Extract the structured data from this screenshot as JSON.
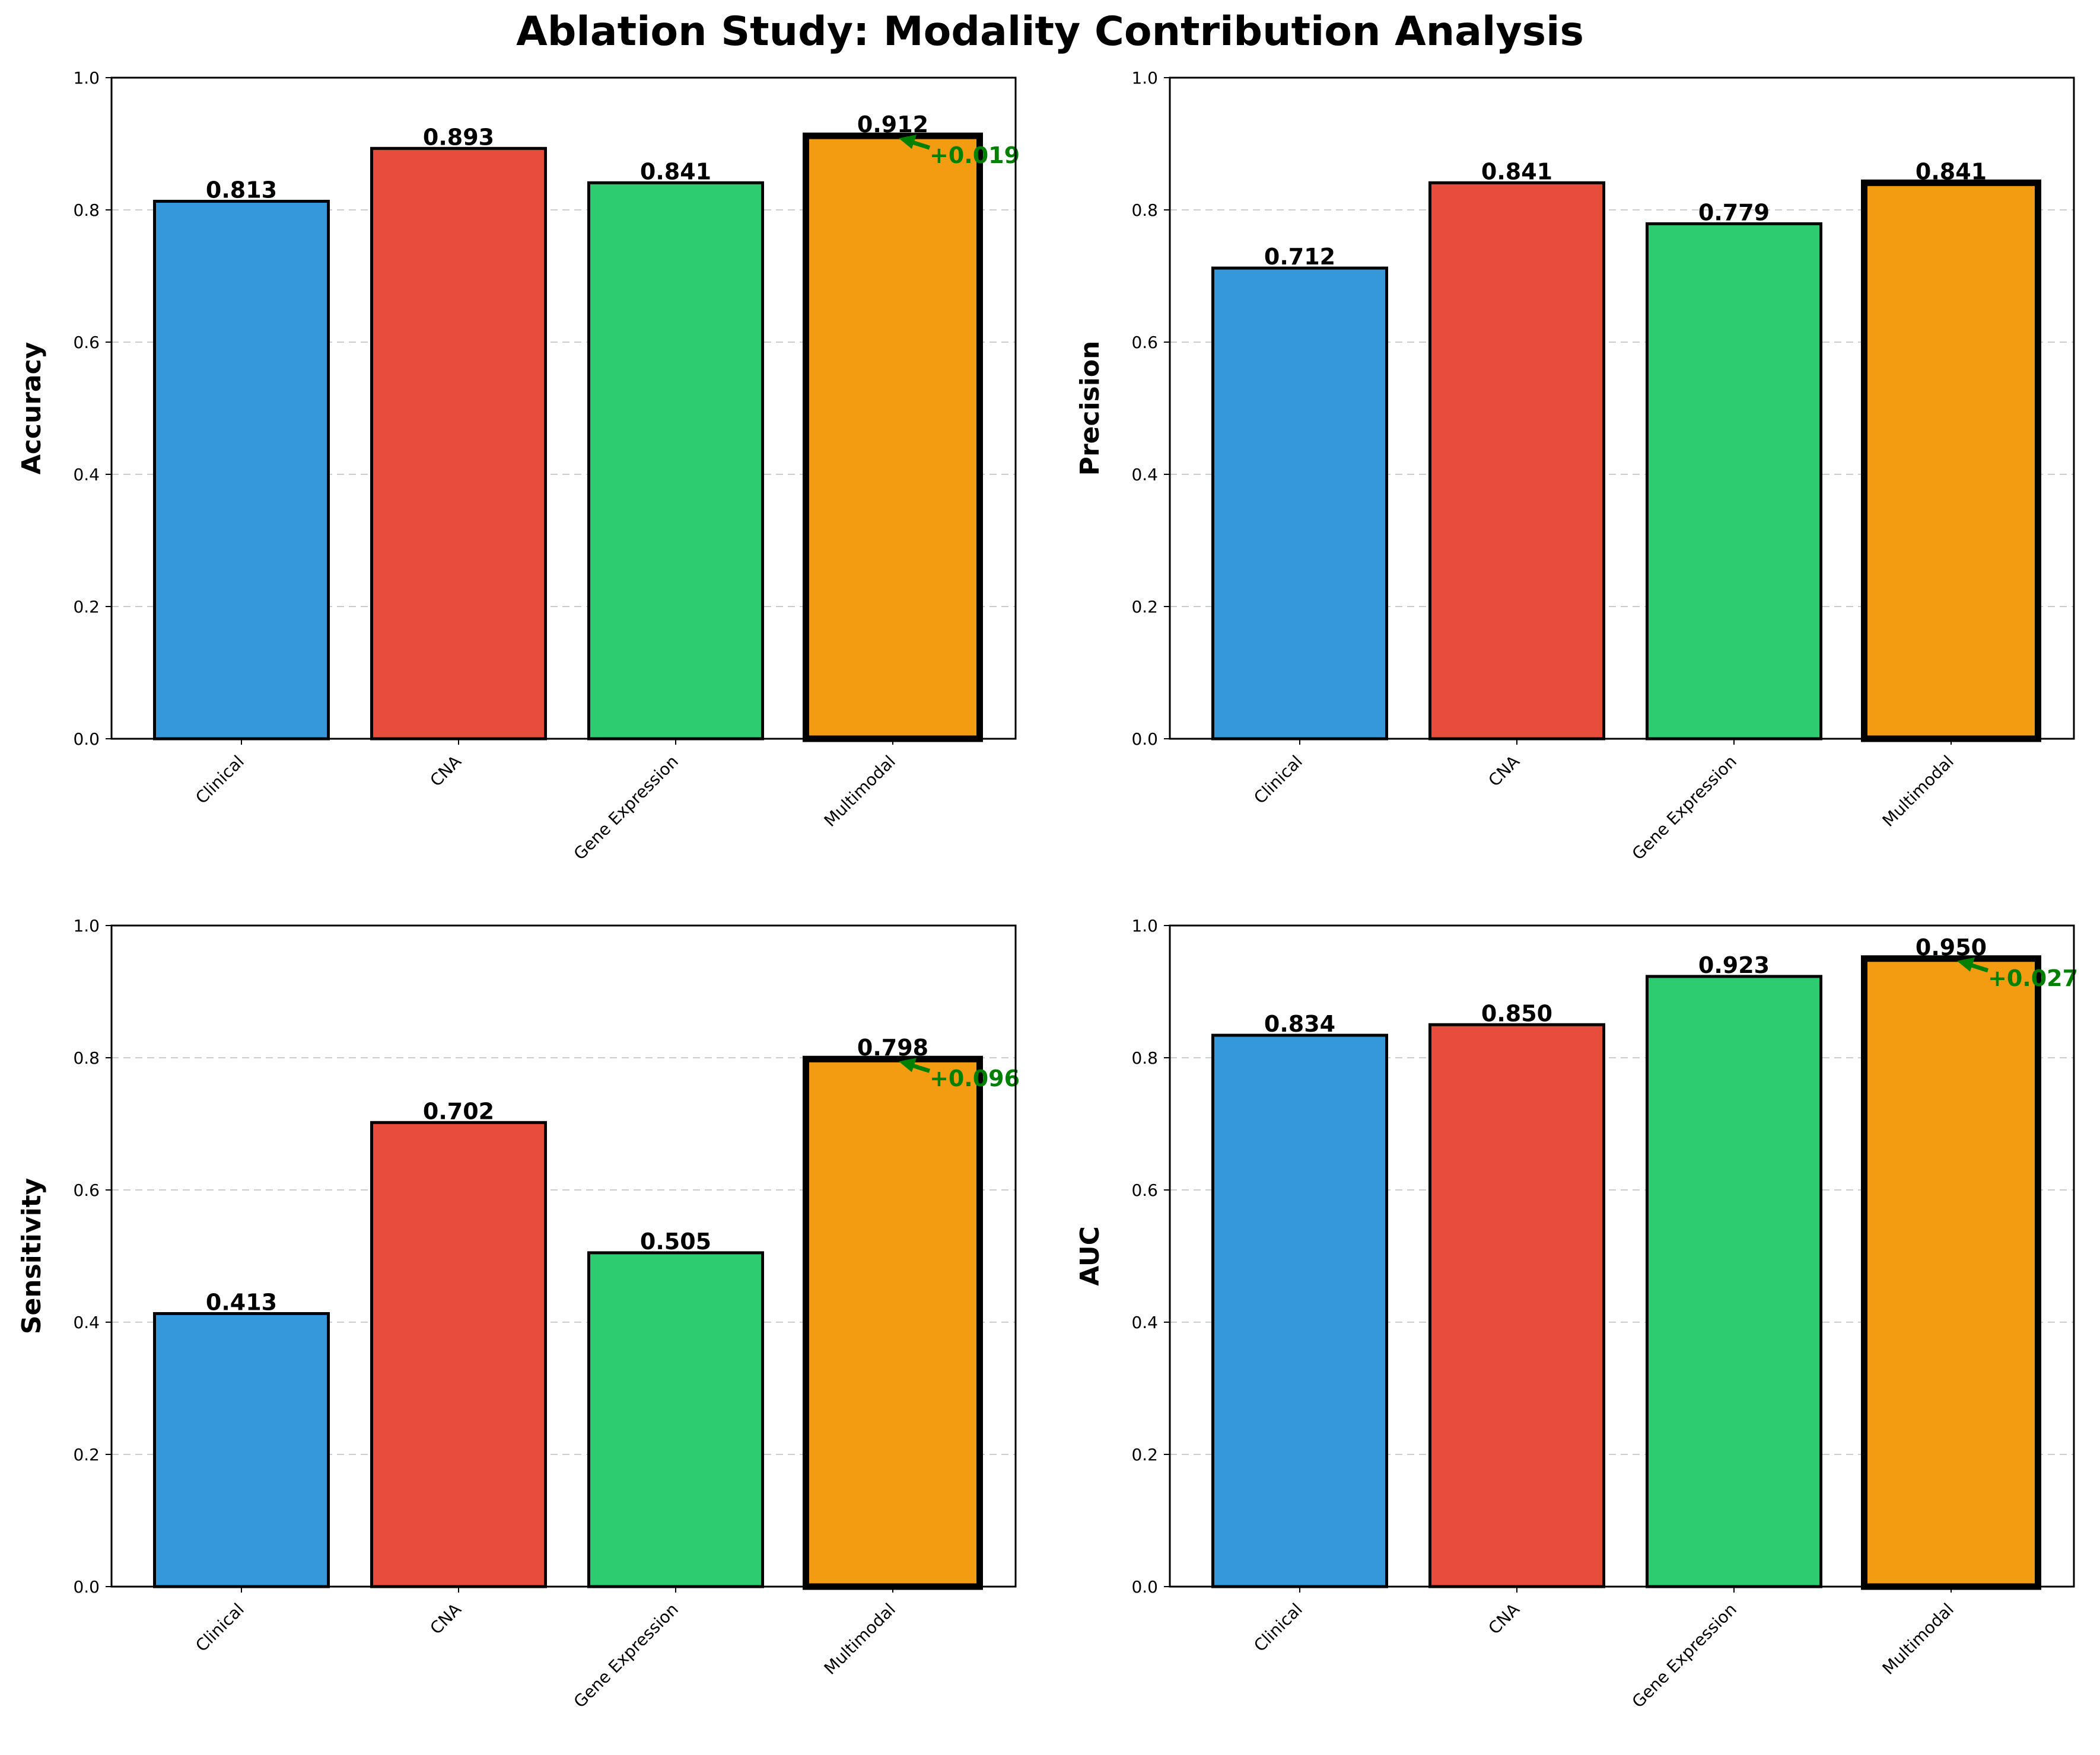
{
  "figure_title": "Ablation Study: Modality Contribution Analysis",
  "colors": {
    "Clinical": "#3498db",
    "CNA": "#e74c3c",
    "Gene Expression": "#2ecc71",
    "Multimodal": "#f39c12",
    "annotation": "#008000",
    "grid": "#cccccc"
  },
  "chart_data": [
    {
      "type": "bar",
      "title": "",
      "ylabel": "Accuracy",
      "xlabel": "",
      "categories": [
        "Clinical",
        "CNA",
        "Gene Expression",
        "Multimodal"
      ],
      "values": [
        0.813,
        0.893,
        0.841,
        0.912
      ],
      "value_labels": [
        "0.813",
        "0.893",
        "0.841",
        "0.912"
      ],
      "ylim": [
        0,
        1.0
      ],
      "yticks": [
        "0.0",
        "0.2",
        "0.4",
        "0.6",
        "0.8",
        "1.0"
      ],
      "grid": "horizontal dashed",
      "highlight": "Multimodal",
      "annotation": {
        "text": "+0.019",
        "target": "Multimodal"
      }
    },
    {
      "type": "bar",
      "title": "",
      "ylabel": "Precision",
      "xlabel": "",
      "categories": [
        "Clinical",
        "CNA",
        "Gene Expression",
        "Multimodal"
      ],
      "values": [
        0.712,
        0.841,
        0.779,
        0.841
      ],
      "value_labels": [
        "0.712",
        "0.841",
        "0.779",
        "0.841"
      ],
      "ylim": [
        0,
        1.0
      ],
      "yticks": [
        "0.0",
        "0.2",
        "0.4",
        "0.6",
        "0.8",
        "1.0"
      ],
      "grid": "horizontal dashed",
      "highlight": "Multimodal",
      "annotation": null
    },
    {
      "type": "bar",
      "title": "",
      "ylabel": "Sensitivity",
      "xlabel": "",
      "categories": [
        "Clinical",
        "CNA",
        "Gene Expression",
        "Multimodal"
      ],
      "values": [
        0.413,
        0.702,
        0.505,
        0.798
      ],
      "value_labels": [
        "0.413",
        "0.702",
        "0.505",
        "0.798"
      ],
      "ylim": [
        0,
        1.0
      ],
      "yticks": [
        "0.0",
        "0.2",
        "0.4",
        "0.6",
        "0.8",
        "1.0"
      ],
      "grid": "horizontal dashed",
      "highlight": "Multimodal",
      "annotation": {
        "text": "+0.096",
        "target": "Multimodal"
      }
    },
    {
      "type": "bar",
      "title": "",
      "ylabel": "AUC",
      "xlabel": "",
      "categories": [
        "Clinical",
        "CNA",
        "Gene Expression",
        "Multimodal"
      ],
      "values": [
        0.834,
        0.85,
        0.923,
        0.95
      ],
      "value_labels": [
        "0.834",
        "0.850",
        "0.923",
        "0.950"
      ],
      "ylim": [
        0,
        1.0
      ],
      "yticks": [
        "0.0",
        "0.2",
        "0.4",
        "0.6",
        "0.8",
        "1.0"
      ],
      "grid": "horizontal dashed",
      "highlight": "Multimodal",
      "annotation": {
        "text": "+0.027",
        "target": "Multimodal"
      }
    }
  ]
}
